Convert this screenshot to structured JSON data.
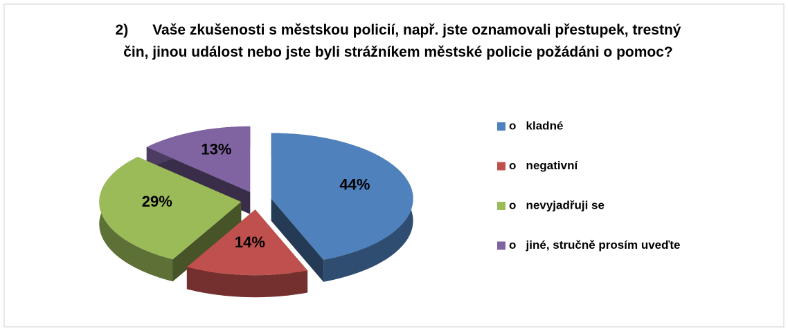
{
  "chart_data": {
    "type": "pie3d",
    "title": "2)      Vaše zkušenosti s městskou policií, např. jste oznamovali přestupek, trestný čin, jinou událost nebo jste byli strážníkem městské policie požádáni o pomoc?",
    "categories": [
      "o   kladné",
      "o   negativní",
      "o   nevyjadřuji se",
      "o   jiné, stručně prosím uveďte"
    ],
    "values": [
      44,
      14,
      29,
      13
    ],
    "value_labels": [
      "44%",
      "14%",
      "29%",
      "13%"
    ],
    "colors": [
      "#4f81bd",
      "#c0504d",
      "#9bbb59",
      "#8064a2"
    ],
    "legend": "right"
  }
}
